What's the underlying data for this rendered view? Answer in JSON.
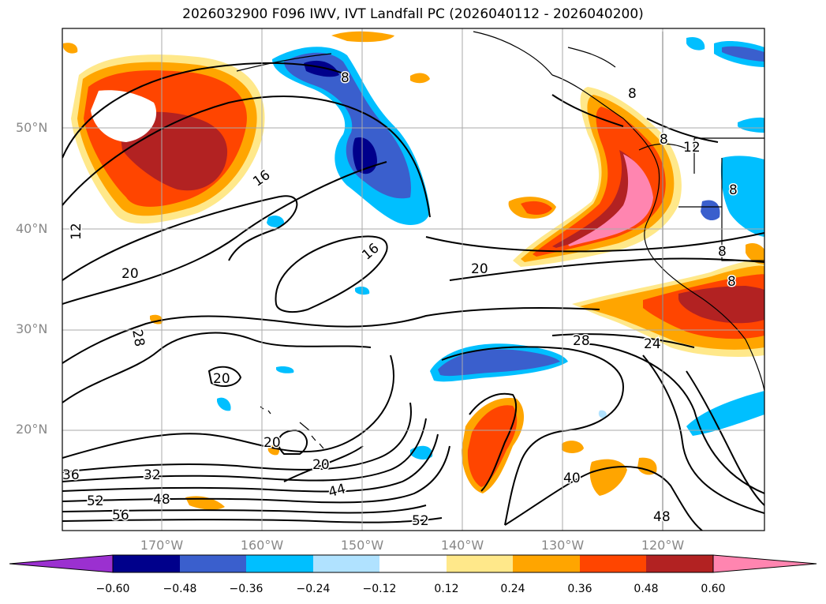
{
  "title": "2026032900 F096 IWV, IVT Landfall PC (2026040112 - 2026040200)",
  "map": {
    "lat_labels": [
      "50°N",
      "40°N",
      "30°N",
      "20°N"
    ],
    "lon_labels": [
      "170°W",
      "160°W",
      "150°W",
      "140°W",
      "130°W",
      "120°W"
    ],
    "contour_labels": [
      "8",
      "12",
      "16",
      "16",
      "20",
      "20",
      "20",
      "20",
      "20",
      "24",
      "28",
      "28",
      "32",
      "36",
      "40",
      "44",
      "48",
      "48",
      "52",
      "52",
      "56",
      "8",
      "8",
      "12",
      "8",
      "8",
      "8"
    ]
  },
  "colorbar": {
    "ticks": [
      "−0.60",
      "−0.48",
      "−0.36",
      "−0.24",
      "−0.12",
      "0.12",
      "0.24",
      "0.36",
      "0.48",
      "0.60"
    ],
    "colors": [
      "#9b30d0",
      "#00008b",
      "#3a5fcd",
      "#00bfff",
      "#b0e2ff",
      "#ffffff",
      "#ffe88a",
      "#ffa500",
      "#ff4500",
      "#b22222",
      "#ff85b0"
    ]
  }
}
